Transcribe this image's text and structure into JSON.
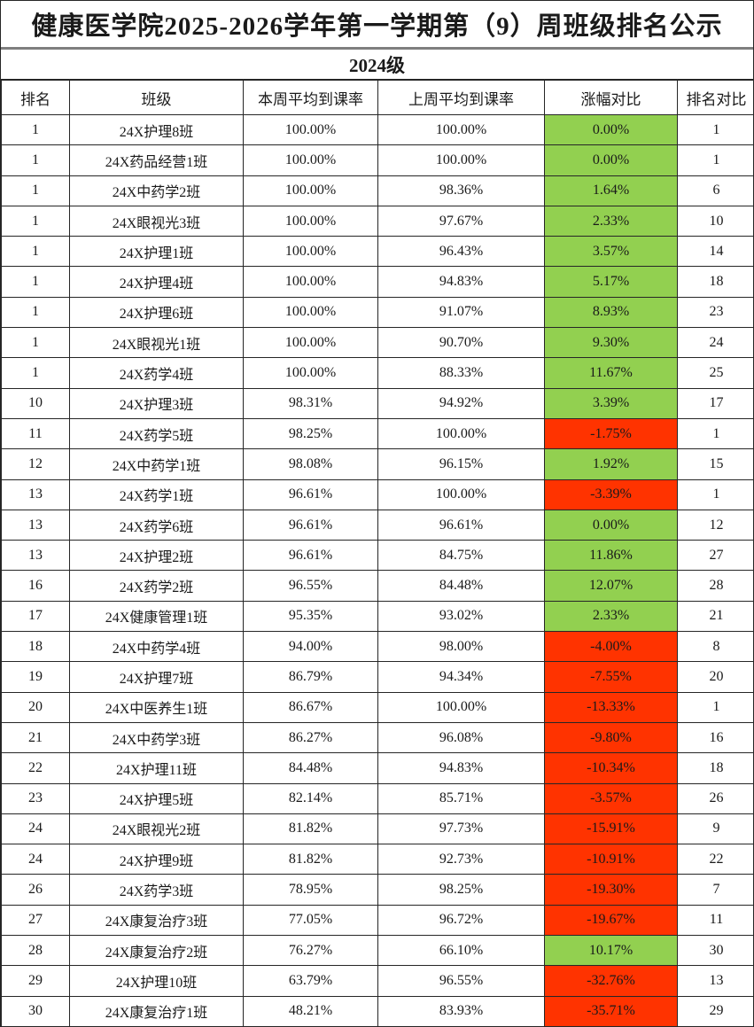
{
  "title": "健康医学院2025-2026学年第一学期第（9）周班级排名公示",
  "grade_header": "2024级",
  "colors": {
    "positive": "#92D050",
    "negative": "#FF3300"
  },
  "table": {
    "columns": [
      "排名",
      "班级",
      "本周平均到课率",
      "上周平均到课率",
      "涨幅对比",
      "排名对比"
    ],
    "rows": [
      {
        "rank": "1",
        "class": "24X护理8班",
        "this_week": "100.00%",
        "last_week": "100.00%",
        "change": "0.00%",
        "trend": "positive",
        "rank_compare": "1"
      },
      {
        "rank": "1",
        "class": "24X药品经营1班",
        "this_week": "100.00%",
        "last_week": "100.00%",
        "change": "0.00%",
        "trend": "positive",
        "rank_compare": "1"
      },
      {
        "rank": "1",
        "class": "24X中药学2班",
        "this_week": "100.00%",
        "last_week": "98.36%",
        "change": "1.64%",
        "trend": "positive",
        "rank_compare": "6"
      },
      {
        "rank": "1",
        "class": "24X眼视光3班",
        "this_week": "100.00%",
        "last_week": "97.67%",
        "change": "2.33%",
        "trend": "positive",
        "rank_compare": "10"
      },
      {
        "rank": "1",
        "class": "24X护理1班",
        "this_week": "100.00%",
        "last_week": "96.43%",
        "change": "3.57%",
        "trend": "positive",
        "rank_compare": "14"
      },
      {
        "rank": "1",
        "class": "24X护理4班",
        "this_week": "100.00%",
        "last_week": "94.83%",
        "change": "5.17%",
        "trend": "positive",
        "rank_compare": "18"
      },
      {
        "rank": "1",
        "class": "24X护理6班",
        "this_week": "100.00%",
        "last_week": "91.07%",
        "change": "8.93%",
        "trend": "positive",
        "rank_compare": "23"
      },
      {
        "rank": "1",
        "class": "24X眼视光1班",
        "this_week": "100.00%",
        "last_week": "90.70%",
        "change": "9.30%",
        "trend": "positive",
        "rank_compare": "24"
      },
      {
        "rank": "1",
        "class": "24X药学4班",
        "this_week": "100.00%",
        "last_week": "88.33%",
        "change": "11.67%",
        "trend": "positive",
        "rank_compare": "25"
      },
      {
        "rank": "10",
        "class": "24X护理3班",
        "this_week": "98.31%",
        "last_week": "94.92%",
        "change": "3.39%",
        "trend": "positive",
        "rank_compare": "17"
      },
      {
        "rank": "11",
        "class": "24X药学5班",
        "this_week": "98.25%",
        "last_week": "100.00%",
        "change": "-1.75%",
        "trend": "negative",
        "rank_compare": "1"
      },
      {
        "rank": "12",
        "class": "24X中药学1班",
        "this_week": "98.08%",
        "last_week": "96.15%",
        "change": "1.92%",
        "trend": "positive",
        "rank_compare": "15"
      },
      {
        "rank": "13",
        "class": "24X药学1班",
        "this_week": "96.61%",
        "last_week": "100.00%",
        "change": "-3.39%",
        "trend": "negative",
        "rank_compare": "1"
      },
      {
        "rank": "13",
        "class": "24X药学6班",
        "this_week": "96.61%",
        "last_week": "96.61%",
        "change": "0.00%",
        "trend": "positive",
        "rank_compare": "12"
      },
      {
        "rank": "13",
        "class": "24X护理2班",
        "this_week": "96.61%",
        "last_week": "84.75%",
        "change": "11.86%",
        "trend": "positive",
        "rank_compare": "27"
      },
      {
        "rank": "16",
        "class": "24X药学2班",
        "this_week": "96.55%",
        "last_week": "84.48%",
        "change": "12.07%",
        "trend": "positive",
        "rank_compare": "28"
      },
      {
        "rank": "17",
        "class": "24X健康管理1班",
        "this_week": "95.35%",
        "last_week": "93.02%",
        "change": "2.33%",
        "trend": "positive",
        "rank_compare": "21"
      },
      {
        "rank": "18",
        "class": "24X中药学4班",
        "this_week": "94.00%",
        "last_week": "98.00%",
        "change": "-4.00%",
        "trend": "negative",
        "rank_compare": "8"
      },
      {
        "rank": "19",
        "class": "24X护理7班",
        "this_week": "86.79%",
        "last_week": "94.34%",
        "change": "-7.55%",
        "trend": "negative",
        "rank_compare": "20"
      },
      {
        "rank": "20",
        "class": "24X中医养生1班",
        "this_week": "86.67%",
        "last_week": "100.00%",
        "change": "-13.33%",
        "trend": "negative",
        "rank_compare": "1"
      },
      {
        "rank": "21",
        "class": "24X中药学3班",
        "this_week": "86.27%",
        "last_week": "96.08%",
        "change": "-9.80%",
        "trend": "negative",
        "rank_compare": "16"
      },
      {
        "rank": "22",
        "class": "24X护理11班",
        "this_week": "84.48%",
        "last_week": "94.83%",
        "change": "-10.34%",
        "trend": "negative",
        "rank_compare": "18"
      },
      {
        "rank": "23",
        "class": "24X护理5班",
        "this_week": "82.14%",
        "last_week": "85.71%",
        "change": "-3.57%",
        "trend": "negative",
        "rank_compare": "26"
      },
      {
        "rank": "24",
        "class": "24X眼视光2班",
        "this_week": "81.82%",
        "last_week": "97.73%",
        "change": "-15.91%",
        "trend": "negative",
        "rank_compare": "9"
      },
      {
        "rank": "24",
        "class": "24X护理9班",
        "this_week": "81.82%",
        "last_week": "92.73%",
        "change": "-10.91%",
        "trend": "negative",
        "rank_compare": "22"
      },
      {
        "rank": "26",
        "class": "24X药学3班",
        "this_week": "78.95%",
        "last_week": "98.25%",
        "change": "-19.30%",
        "trend": "negative",
        "rank_compare": "7"
      },
      {
        "rank": "27",
        "class": "24X康复治疗3班",
        "this_week": "77.05%",
        "last_week": "96.72%",
        "change": "-19.67%",
        "trend": "negative",
        "rank_compare": "11"
      },
      {
        "rank": "28",
        "class": "24X康复治疗2班",
        "this_week": "76.27%",
        "last_week": "66.10%",
        "change": "10.17%",
        "trend": "positive",
        "rank_compare": "30"
      },
      {
        "rank": "29",
        "class": "24X护理10班",
        "this_week": "63.79%",
        "last_week": "96.55%",
        "change": "-32.76%",
        "trend": "negative",
        "rank_compare": "13"
      },
      {
        "rank": "30",
        "class": "24X康复治疗1班",
        "this_week": "48.21%",
        "last_week": "83.93%",
        "change": "-35.71%",
        "trend": "negative",
        "rank_compare": "29"
      }
    ]
  }
}
